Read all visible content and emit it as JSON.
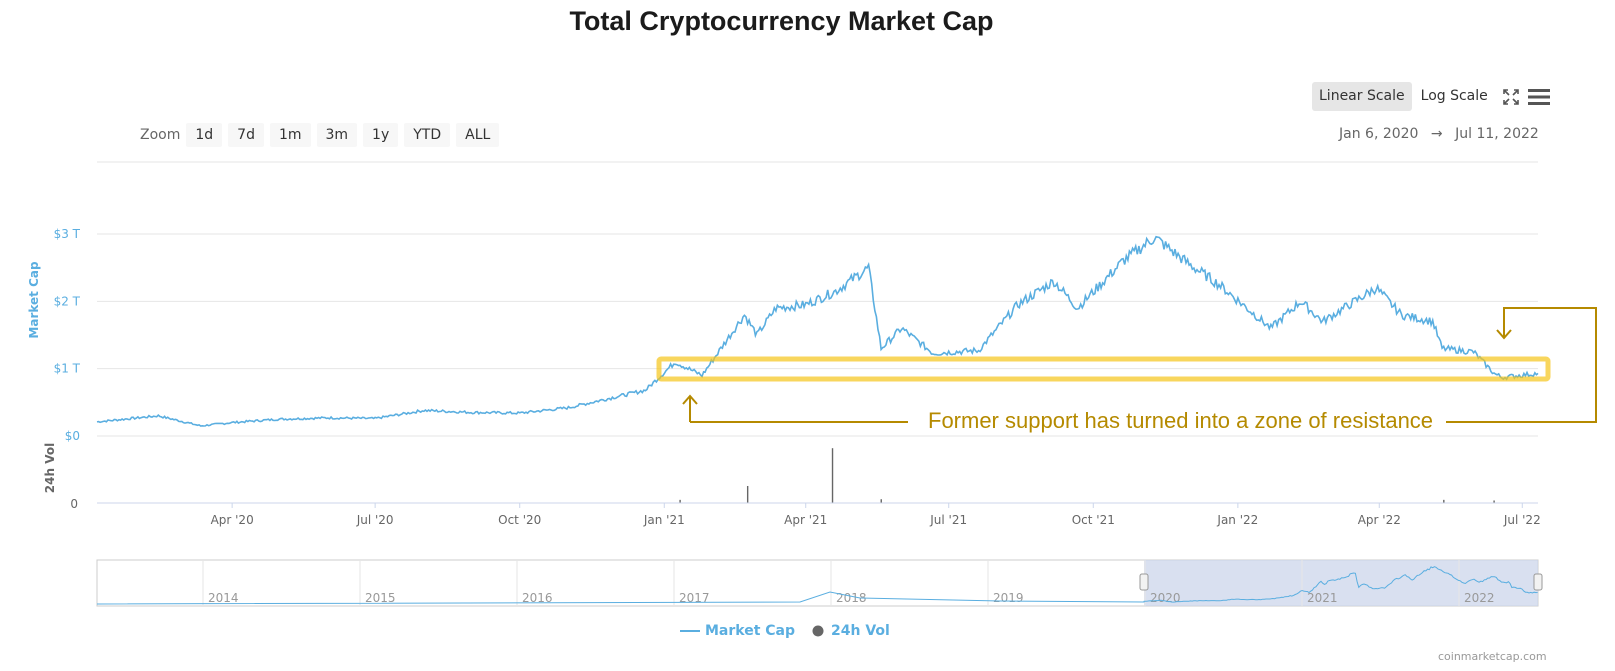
{
  "title": "Total Cryptocurrency Market Cap",
  "scale_buttons": {
    "linear": "Linear Scale",
    "log": "Log Scale"
  },
  "zoom": {
    "label": "Zoom",
    "buttons": [
      "1d",
      "7d",
      "1m",
      "3m",
      "1y",
      "YTD",
      "ALL"
    ]
  },
  "date_range": {
    "from": "Jan 6, 2020",
    "arrow": "→",
    "to": "Jul 11, 2022"
  },
  "annotation": "Former support has turned into a zone of resistance",
  "credits": "coinmarketcap.com",
  "colors": {
    "market_cap": "#5aaee0",
    "volume": "#666666",
    "annotation": "#b58a00",
    "highlight": "#f5c518",
    "navigator_mask": "#ccd6eb"
  },
  "chart_data": {
    "type": "line",
    "title": "Total Cryptocurrency Market Cap",
    "ylabel": "Market Cap",
    "ylabel2": "24h Vol",
    "ylim": [
      0,
      3
    ],
    "y_unit": "trillion USD",
    "y_ticks": [
      "$0",
      "$1 T",
      "$2 T",
      "$3 T"
    ],
    "y2_ticks": [
      "0"
    ],
    "x_ticks": [
      "Apr '20",
      "Jul '20",
      "Oct '20",
      "Jan '21",
      "Apr '21",
      "Jul '21",
      "Oct '21",
      "Jan '22",
      "Apr '22",
      "Jul '22"
    ],
    "series": [
      {
        "name": "Market Cap",
        "x": [
          "2020-01-06",
          "2020-02-14",
          "2020-03-12",
          "2020-04-01",
          "2020-05-01",
          "2020-06-01",
          "2020-07-01",
          "2020-08-01",
          "2020-09-01",
          "2020-10-01",
          "2020-11-01",
          "2020-12-01",
          "2020-12-20",
          "2021-01-08",
          "2021-01-25",
          "2021-02-21",
          "2021-03-01",
          "2021-03-13",
          "2021-04-01",
          "2021-04-20",
          "2021-05-11",
          "2021-05-19",
          "2021-06-01",
          "2021-06-21",
          "2021-07-20",
          "2021-08-14",
          "2021-09-06",
          "2021-09-21",
          "2021-10-20",
          "2021-11-09",
          "2021-12-01",
          "2021-12-20",
          "2022-01-22",
          "2022-02-10",
          "2022-02-24",
          "2022-03-30",
          "2022-04-15",
          "2022-05-05",
          "2022-05-11",
          "2022-05-31",
          "2022-06-13",
          "2022-06-18",
          "2022-07-11"
        ],
        "values": [
          0.21,
          0.3,
          0.15,
          0.2,
          0.25,
          0.27,
          0.26,
          0.38,
          0.35,
          0.34,
          0.42,
          0.58,
          0.68,
          1.1,
          0.9,
          1.8,
          1.5,
          1.9,
          1.95,
          2.15,
          2.5,
          1.3,
          1.6,
          1.23,
          1.27,
          1.95,
          2.3,
          1.9,
          2.6,
          2.95,
          2.55,
          2.25,
          1.6,
          2.0,
          1.7,
          2.2,
          1.8,
          1.7,
          1.3,
          1.25,
          0.93,
          0.87,
          0.93
        ]
      },
      {
        "name": "24h Vol",
        "note": "rendered as bars in lower pane",
        "x": [
          "2021-01-11",
          "2021-02-23",
          "2021-04-18",
          "2021-05-19",
          "2022-05-12",
          "2022-06-13"
        ],
        "values": [
          0.05,
          0.27,
          0.87,
          0.06,
          0.05,
          0.04
        ]
      }
    ],
    "navigator": {
      "years": [
        "2014",
        "2015",
        "2016",
        "2017",
        "2018",
        "2019",
        "2020",
        "2021",
        "2022"
      ],
      "selected_range": [
        "Jan 6, 2020",
        "Jul 11, 2022"
      ]
    },
    "legend": [
      "Market Cap",
      "24h Vol"
    ],
    "legend_position": "bottom-center",
    "grid": true
  }
}
